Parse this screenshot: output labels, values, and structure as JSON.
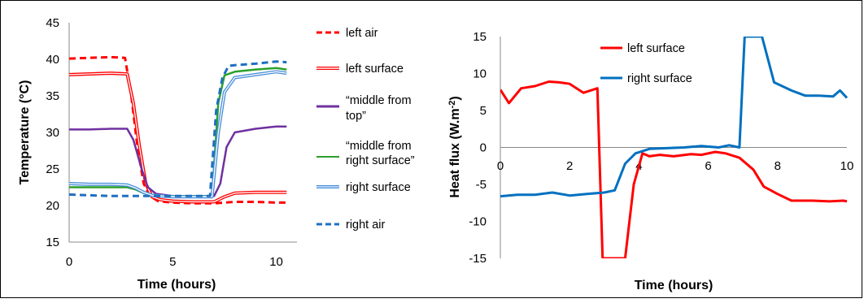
{
  "chart_data": [
    {
      "type": "line",
      "title": "",
      "xlabel": "Time (hours)",
      "ylabel": "Temperature (°C)",
      "xlim": [
        0,
        11
      ],
      "ylim": [
        15,
        45
      ],
      "xticks": [
        0,
        5,
        10
      ],
      "yticks": [
        15,
        20,
        25,
        30,
        35,
        40,
        45
      ],
      "grid": false,
      "legend_position": "right",
      "series": [
        {
          "name": "left air",
          "color": "#ff0000",
          "style": "dashed",
          "x": [
            0,
            1,
            2,
            2.7,
            3.0,
            3.3,
            3.6,
            3.9,
            4.3,
            5,
            6,
            7,
            8,
            9,
            10,
            10.5
          ],
          "y": [
            40.1,
            40.2,
            40.3,
            40.2,
            35,
            28,
            23,
            21.3,
            20.6,
            20.4,
            20.3,
            20.3,
            20.5,
            20.5,
            20.4,
            20.4
          ]
        },
        {
          "name": "left surface",
          "color": "#ff0000",
          "style": "double",
          "x": [
            0,
            1,
            2,
            2.8,
            3.1,
            3.4,
            3.7,
            4.0,
            4.4,
            5,
            6,
            7,
            7.5,
            8,
            9,
            10,
            10.5
          ],
          "y": [
            37.9,
            38.0,
            38.1,
            38.0,
            34,
            28,
            23,
            21.2,
            20.8,
            20.6,
            20.5,
            20.5,
            21.2,
            21.7,
            21.8,
            21.8,
            21.8
          ]
        },
        {
          "name": "“middle from top”",
          "color": "#7030a0",
          "style": "solid",
          "x": [
            0,
            1,
            2,
            2.8,
            3.1,
            3.5,
            3.8,
            4.2,
            5,
            6,
            7,
            7.3,
            7.6,
            8,
            9,
            10,
            10.5
          ],
          "y": [
            30.4,
            30.4,
            30.5,
            30.5,
            29,
            25,
            22.5,
            21.6,
            21.3,
            21.3,
            21.3,
            23,
            28,
            30,
            30.5,
            30.8,
            30.8
          ]
        },
        {
          "name": "“middle from right surface”",
          "color": "#2ca02c",
          "style": "solid",
          "x": [
            0,
            1,
            2,
            2.8,
            3.2,
            3.6,
            4.0,
            5,
            6,
            6.9,
            7.2,
            7.5,
            8,
            9,
            10,
            10.5
          ],
          "y": [
            22.5,
            22.5,
            22.5,
            22.5,
            22.2,
            21.7,
            21.4,
            21.3,
            21.3,
            21.3,
            34,
            37.8,
            38.3,
            38.6,
            38.8,
            38.6
          ]
        },
        {
          "name": "right surface",
          "color": "#4a90d9",
          "style": "double",
          "x": [
            0,
            1,
            2,
            2.8,
            3.2,
            3.6,
            4.0,
            5,
            6,
            6.9,
            7.2,
            7.5,
            8,
            9,
            10,
            10.5
          ],
          "y": [
            23.0,
            22.9,
            22.9,
            22.8,
            22.4,
            21.8,
            21.4,
            21.2,
            21.2,
            21.2,
            30,
            35.5,
            37.5,
            37.9,
            38.3,
            38.1
          ]
        },
        {
          "name": "right air",
          "color": "#1f6fc0",
          "style": "dashed",
          "x": [
            0,
            1,
            2,
            3,
            4,
            5,
            6,
            6.8,
            7.1,
            7.4,
            7.7,
            8,
            9,
            10,
            10.5
          ],
          "y": [
            21.5,
            21.4,
            21.3,
            21.3,
            21.3,
            21.3,
            21.3,
            21.3,
            33,
            37.5,
            39.1,
            39.2,
            39.4,
            39.7,
            39.6
          ]
        }
      ]
    },
    {
      "type": "line",
      "title": "",
      "xlabel": "Time (hours)",
      "ylabel": "Heat flux (W.m⁻²)",
      "xlim": [
        0,
        10
      ],
      "ylim": [
        -15,
        15
      ],
      "xticks": [
        0,
        2,
        4,
        6,
        8,
        10
      ],
      "yticks": [
        -15,
        -10,
        -5,
        0,
        5,
        10,
        15
      ],
      "grid": false,
      "legend_position": "top-left",
      "series": [
        {
          "name": "left surface",
          "color": "#ff0000",
          "style": "solid",
          "x": [
            0,
            0.25,
            0.6,
            1.0,
            1.4,
            1.7,
            2.0,
            2.4,
            2.8,
            2.95,
            3.6,
            3.85,
            4.1,
            4.3,
            4.6,
            5.0,
            5.5,
            5.8,
            6.2,
            6.5,
            6.9,
            7.3,
            7.6,
            8.0,
            8.4,
            9.0,
            9.5,
            9.9,
            10.0
          ],
          "y": [
            7.8,
            6.0,
            8.0,
            8.3,
            8.9,
            8.8,
            8.6,
            7.4,
            8.0,
            -15,
            -15,
            -5,
            -0.8,
            -1.2,
            -1.0,
            -1.2,
            -0.9,
            -1.0,
            -0.6,
            -0.8,
            -1.4,
            -3.0,
            -5.3,
            -6.3,
            -7.2,
            -7.2,
            -7.3,
            -7.2,
            -7.3
          ]
        },
        {
          "name": "right surface",
          "color": "#0070c0",
          "style": "solid",
          "x": [
            0,
            0.5,
            1.0,
            1.5,
            2.0,
            2.5,
            3.0,
            3.3,
            3.6,
            3.9,
            4.3,
            4.8,
            5.3,
            5.8,
            6.3,
            6.6,
            6.9,
            7.05,
            7.55,
            7.9,
            8.4,
            8.8,
            9.2,
            9.6,
            9.8,
            10.0
          ],
          "y": [
            -6.6,
            -6.4,
            -6.4,
            -6.1,
            -6.5,
            -6.3,
            -6.1,
            -5.8,
            -2.2,
            -0.8,
            -0.2,
            -0.1,
            0.0,
            0.2,
            0.0,
            0.3,
            0.0,
            15,
            15,
            8.8,
            7.7,
            7.0,
            7.0,
            6.9,
            7.7,
            6.7
          ]
        }
      ]
    }
  ]
}
